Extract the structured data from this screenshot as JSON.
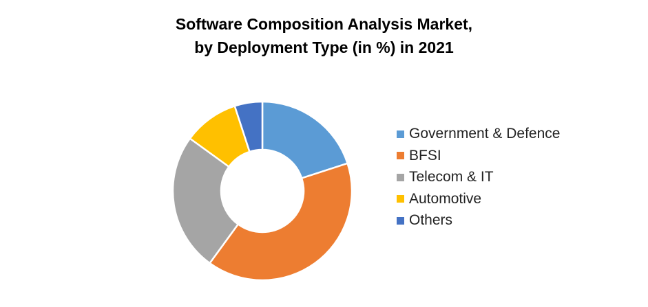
{
  "chart_data": {
    "type": "pie",
    "donut": true,
    "title": [
      "Software Composition Analysis Market,",
      "by  Deployment Type (in %) in 2021"
    ],
    "categories": [
      "Government & Defence",
      "BFSI",
      "Telecom & IT",
      "Automotive",
      "Others"
    ],
    "values": [
      20,
      40,
      25,
      10,
      5
    ],
    "colors": [
      "#5B9BD5",
      "#ED7D31",
      "#A5A5A5",
      "#FFC000",
      "#4472C4"
    ],
    "legend_position": "right"
  }
}
